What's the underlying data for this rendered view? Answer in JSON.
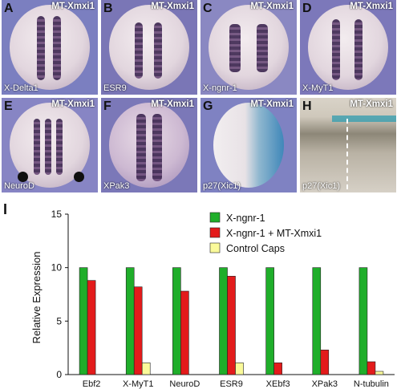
{
  "panels": [
    {
      "letter": "A",
      "title": "MT-Xmxi1",
      "gene": "X-Delta1"
    },
    {
      "letter": "B",
      "title": "MT-Xmxi1",
      "gene": "ESR9"
    },
    {
      "letter": "C",
      "title": "MT-Xmxi1",
      "gene": "X-ngnr-1"
    },
    {
      "letter": "D",
      "title": "MT-Xmxi1",
      "gene": "X-MyT1"
    },
    {
      "letter": "E",
      "title": "MT-Xmxi1",
      "gene": "NeuroD"
    },
    {
      "letter": "F",
      "title": "MT-Xmxi1",
      "gene": "XPak3"
    },
    {
      "letter": "G",
      "title": "MT-Xmxi1",
      "gene": "p27(Xic1)"
    },
    {
      "letter": "H",
      "title": "MT-Xmxi1",
      "gene": "p27(Xic1)"
    }
  ],
  "chart_label": "I",
  "chart_data": {
    "type": "bar",
    "categories": [
      "Ebf2",
      "X-MyT1",
      "NeuroD",
      "ESR9",
      "XEbf3",
      "XPak3",
      "N-tubulin"
    ],
    "series": [
      {
        "name": "X-ngnr-1",
        "color": "#1fae2a",
        "values": [
          10,
          10,
          10,
          10,
          10,
          10,
          10
        ]
      },
      {
        "name": "X-ngnr-1 + MT-Xmxi1",
        "color": "#e31b1b",
        "values": [
          8.8,
          8.2,
          7.8,
          9.2,
          1.1,
          2.3,
          1.2
        ]
      },
      {
        "name": "Control Caps",
        "color": "#fafa9a",
        "values": [
          0,
          1.1,
          0,
          1.1,
          0,
          0,
          0.3
        ]
      }
    ],
    "xlabel": "",
    "ylabel": "Relative Expression",
    "ylim": [
      0,
      15
    ],
    "yticks": [
      0,
      5,
      10,
      15
    ],
    "grid": false,
    "legend": "top-right"
  }
}
